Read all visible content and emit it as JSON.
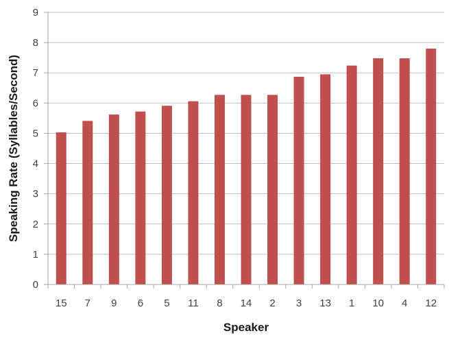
{
  "chart_data": {
    "type": "bar",
    "title": "",
    "xlabel": "Speaker",
    "ylabel": "Speaking Rate (Syllables/Second)",
    "categories": [
      "15",
      "7",
      "9",
      "6",
      "5",
      "11",
      "8",
      "14",
      "2",
      "3",
      "13",
      "1",
      "10",
      "4",
      "12"
    ],
    "values": [
      5.03,
      5.41,
      5.62,
      5.72,
      5.91,
      6.06,
      6.27,
      6.27,
      6.27,
      6.87,
      6.95,
      7.24,
      7.48,
      7.48,
      7.8
    ],
    "ylim": [
      0,
      9
    ],
    "yticks": [
      "0",
      "1",
      "2",
      "3",
      "4",
      "5",
      "6",
      "7",
      "8",
      "9"
    ],
    "grid": "horizontal",
    "bar_color": "#C0504D",
    "legend": "none"
  }
}
